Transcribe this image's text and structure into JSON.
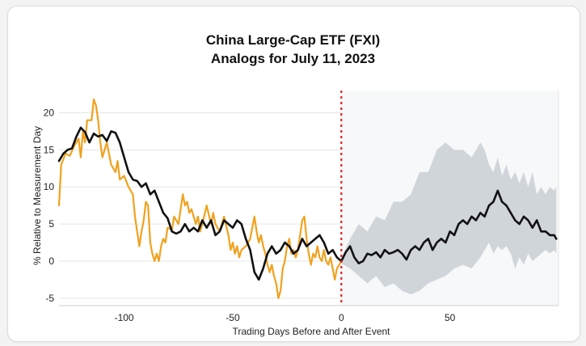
{
  "chart_data": {
    "type": "line",
    "title": "China Large-Cap ETF (FXI)",
    "subtitle": "Analogs for July 11, 2023",
    "xlabel": "Trading Days Before and After Event",
    "ylabel": "% Relative to Measurement Day",
    "xlim": [
      -130,
      100
    ],
    "ylim": [
      -6,
      23
    ],
    "x_ticks": [
      -100,
      -50,
      0,
      50
    ],
    "y_ticks": [
      -5,
      0,
      5,
      10,
      15,
      20
    ],
    "grid": "horizontal",
    "event_line": {
      "x": 0,
      "style": "dotted",
      "color": "#e32222"
    },
    "colors": {
      "measured": "#111111",
      "analog": "#f0a21e",
      "band": "#cdd3d8",
      "event": "#e32222"
    },
    "series": [
      {
        "role": "measured",
        "points": [
          [
            -130,
            13.5
          ],
          [
            -128,
            14.5
          ],
          [
            -126,
            15
          ],
          [
            -124,
            15.2
          ],
          [
            -122,
            16.8
          ],
          [
            -120,
            18
          ],
          [
            -118,
            17.4
          ],
          [
            -116,
            16
          ],
          [
            -114,
            17.2
          ],
          [
            -112,
            16.8
          ],
          [
            -110,
            17
          ],
          [
            -108,
            16.2
          ],
          [
            -106,
            17.5
          ],
          [
            -104,
            17.3
          ],
          [
            -102,
            16
          ],
          [
            -100,
            14
          ],
          [
            -98,
            12
          ],
          [
            -96,
            11
          ],
          [
            -94,
            10.8
          ],
          [
            -92,
            10
          ],
          [
            -90,
            10.5
          ],
          [
            -88,
            9
          ],
          [
            -86,
            9.5
          ],
          [
            -84,
            8
          ],
          [
            -82,
            6.5
          ],
          [
            -80,
            5.8
          ],
          [
            -78,
            4
          ],
          [
            -76,
            3.7
          ],
          [
            -74,
            4
          ],
          [
            -72,
            5
          ],
          [
            -70,
            4
          ],
          [
            -68,
            4.5
          ],
          [
            -66,
            4
          ],
          [
            -64,
            5.5
          ],
          [
            -62,
            4.5
          ],
          [
            -60,
            5.5
          ],
          [
            -58,
            3.5
          ],
          [
            -56,
            4
          ],
          [
            -54,
            5.5
          ],
          [
            -52,
            5
          ],
          [
            -50,
            4.5
          ],
          [
            -48,
            5.5
          ],
          [
            -46,
            5
          ],
          [
            -44,
            3
          ],
          [
            -42,
            1.5
          ],
          [
            -40,
            -1.5
          ],
          [
            -38,
            -2.5
          ],
          [
            -36,
            -1
          ],
          [
            -34,
            1
          ],
          [
            -32,
            2
          ],
          [
            -30,
            1
          ],
          [
            -28,
            1.5
          ],
          [
            -26,
            2.5
          ],
          [
            -24,
            2
          ],
          [
            -22,
            1
          ],
          [
            -20,
            1.5
          ],
          [
            -18,
            3
          ],
          [
            -16,
            2
          ],
          [
            -14,
            2.5
          ],
          [
            -12,
            3
          ],
          [
            -10,
            3.5
          ],
          [
            -8,
            2.5
          ],
          [
            -6,
            1
          ],
          [
            -4,
            1.5
          ],
          [
            -2,
            0.5
          ],
          [
            0,
            0
          ],
          [
            2,
            1.2
          ],
          [
            4,
            2
          ],
          [
            6,
            0.5
          ],
          [
            8,
            -0.3
          ],
          [
            10,
            0
          ],
          [
            12,
            1
          ],
          [
            14,
            0.8
          ],
          [
            16,
            1.2
          ],
          [
            18,
            0.5
          ],
          [
            20,
            1.5
          ],
          [
            22,
            1
          ],
          [
            24,
            1.2
          ],
          [
            26,
            1.5
          ],
          [
            28,
            1
          ],
          [
            30,
            0.2
          ],
          [
            32,
            1.5
          ],
          [
            34,
            2
          ],
          [
            36,
            1.5
          ],
          [
            38,
            2.5
          ],
          [
            40,
            3
          ],
          [
            42,
            1.5
          ],
          [
            44,
            2.5
          ],
          [
            46,
            3
          ],
          [
            48,
            2.5
          ],
          [
            50,
            4
          ],
          [
            52,
            3.5
          ],
          [
            54,
            5
          ],
          [
            56,
            5.5
          ],
          [
            58,
            5
          ],
          [
            60,
            6
          ],
          [
            62,
            5.5
          ],
          [
            64,
            6.5
          ],
          [
            66,
            6
          ],
          [
            68,
            7.5
          ],
          [
            70,
            8
          ],
          [
            72,
            9.5
          ],
          [
            74,
            8
          ],
          [
            76,
            7.5
          ],
          [
            78,
            6.5
          ],
          [
            80,
            5.5
          ],
          [
            82,
            5
          ],
          [
            84,
            6
          ],
          [
            86,
            5.5
          ],
          [
            88,
            4.5
          ],
          [
            90,
            5.5
          ],
          [
            92,
            4
          ],
          [
            94,
            4
          ],
          [
            96,
            3.5
          ],
          [
            98,
            3.5
          ],
          [
            99,
            3
          ]
        ]
      },
      {
        "role": "analog",
        "points": [
          [
            -130,
            7.5
          ],
          [
            -129,
            13
          ],
          [
            -127,
            14.5
          ],
          [
            -125,
            14.2
          ],
          [
            -123,
            15.5
          ],
          [
            -121,
            16.5
          ],
          [
            -120,
            14
          ],
          [
            -119,
            17.5
          ],
          [
            -118,
            16
          ],
          [
            -117,
            19
          ],
          [
            -115,
            19
          ],
          [
            -114,
            21.8
          ],
          [
            -113,
            21
          ],
          [
            -112,
            19
          ],
          [
            -111,
            16
          ],
          [
            -110,
            14
          ],
          [
            -108,
            16
          ],
          [
            -106,
            13
          ],
          [
            -104,
            12
          ],
          [
            -103,
            13.5
          ],
          [
            -102,
            11
          ],
          [
            -100,
            11.5
          ],
          [
            -98,
            10
          ],
          [
            -96,
            9
          ],
          [
            -95,
            6
          ],
          [
            -94,
            4
          ],
          [
            -93,
            2
          ],
          [
            -92,
            4
          ],
          [
            -91,
            5.5
          ],
          [
            -90,
            8
          ],
          [
            -89,
            7.5
          ],
          [
            -88,
            2.5
          ],
          [
            -87,
            1
          ],
          [
            -86,
            0
          ],
          [
            -85,
            1
          ],
          [
            -84,
            0
          ],
          [
            -83,
            2
          ],
          [
            -82,
            3
          ],
          [
            -81,
            2.5
          ],
          [
            -80,
            4.5
          ],
          [
            -78,
            4.2
          ],
          [
            -77,
            6
          ],
          [
            -75,
            5
          ],
          [
            -74,
            7
          ],
          [
            -73,
            9
          ],
          [
            -72,
            7.5
          ],
          [
            -71,
            8
          ],
          [
            -70,
            6.5
          ],
          [
            -69,
            7
          ],
          [
            -68,
            6
          ],
          [
            -67,
            5
          ],
          [
            -66,
            6
          ],
          [
            -65,
            4
          ],
          [
            -64,
            5
          ],
          [
            -62,
            7.5
          ],
          [
            -60,
            5
          ],
          [
            -59,
            6.5
          ],
          [
            -58,
            5
          ],
          [
            -56,
            4
          ],
          [
            -54,
            6
          ],
          [
            -52,
            3.5
          ],
          [
            -51,
            1.5
          ],
          [
            -50,
            2.5
          ],
          [
            -49,
            1
          ],
          [
            -48,
            2
          ],
          [
            -47,
            0.5
          ],
          [
            -46,
            1.5
          ],
          [
            -44,
            2
          ],
          [
            -42,
            3
          ],
          [
            -41,
            4.5
          ],
          [
            -40,
            6
          ],
          [
            -39,
            4
          ],
          [
            -38,
            2.5
          ],
          [
            -37,
            3.5
          ],
          [
            -36,
            2
          ],
          [
            -35,
            1
          ],
          [
            -34,
            -0.5
          ],
          [
            -33,
            -1.5
          ],
          [
            -32,
            -0.5
          ],
          [
            -31,
            -2
          ],
          [
            -30,
            -3
          ],
          [
            -29,
            -5
          ],
          [
            -28,
            -4
          ],
          [
            -27,
            -1
          ],
          [
            -26,
            0
          ],
          [
            -25,
            2
          ],
          [
            -24,
            3
          ],
          [
            -23,
            1
          ],
          [
            -22,
            1.5
          ],
          [
            -21,
            0.5
          ],
          [
            -20,
            1.5
          ],
          [
            -19,
            3.5
          ],
          [
            -18,
            5.5
          ],
          [
            -17,
            6
          ],
          [
            -16,
            3
          ],
          [
            -15,
            1
          ],
          [
            -14,
            -0.5
          ],
          [
            -13,
            1
          ],
          [
            -12,
            0.5
          ],
          [
            -11,
            2
          ],
          [
            -10,
            0.5
          ],
          [
            -9,
            0
          ],
          [
            -8,
            1.5
          ],
          [
            -7,
            0
          ],
          [
            -6,
            -0.5
          ],
          [
            -5,
            0.5
          ],
          [
            -4,
            -1
          ],
          [
            -3,
            -2.5
          ],
          [
            -2,
            -1
          ],
          [
            -1,
            -0.5
          ],
          [
            0,
            0
          ]
        ]
      }
    ],
    "band": {
      "upper": [
        [
          0,
          0.3
        ],
        [
          4,
          3
        ],
        [
          8,
          5
        ],
        [
          12,
          4
        ],
        [
          16,
          6
        ],
        [
          20,
          5.5
        ],
        [
          24,
          8
        ],
        [
          28,
          8
        ],
        [
          32,
          9
        ],
        [
          36,
          12
        ],
        [
          40,
          12
        ],
        [
          44,
          15
        ],
        [
          48,
          16
        ],
        [
          52,
          15
        ],
        [
          56,
          15
        ],
        [
          60,
          14
        ],
        [
          64,
          16
        ],
        [
          66,
          15
        ],
        [
          68,
          13
        ],
        [
          70,
          12
        ],
        [
          72,
          14
        ],
        [
          74,
          11.5
        ],
        [
          76,
          13
        ],
        [
          78,
          11
        ],
        [
          80,
          12
        ],
        [
          82,
          10.5
        ],
        [
          84,
          12
        ],
        [
          86,
          10
        ],
        [
          88,
          12
        ],
        [
          90,
          9
        ],
        [
          92,
          10
        ],
        [
          94,
          9
        ],
        [
          96,
          10
        ],
        [
          98,
          9.5
        ],
        [
          99,
          10
        ]
      ],
      "lower": [
        [
          0,
          -0.3
        ],
        [
          4,
          -1
        ],
        [
          8,
          -2
        ],
        [
          12,
          -3
        ],
        [
          16,
          -2
        ],
        [
          20,
          -3.5
        ],
        [
          24,
          -3
        ],
        [
          28,
          -4
        ],
        [
          32,
          -4.5
        ],
        [
          36,
          -4
        ],
        [
          40,
          -3
        ],
        [
          44,
          -2.5
        ],
        [
          48,
          -2
        ],
        [
          52,
          -1
        ],
        [
          56,
          -0.5
        ],
        [
          60,
          -1
        ],
        [
          64,
          0.5
        ],
        [
          66,
          1.5
        ],
        [
          68,
          2.5
        ],
        [
          70,
          1
        ],
        [
          72,
          2
        ],
        [
          74,
          1.5
        ],
        [
          76,
          2
        ],
        [
          78,
          1
        ],
        [
          80,
          -1
        ],
        [
          82,
          0.5
        ],
        [
          84,
          -0.5
        ],
        [
          86,
          1
        ],
        [
          88,
          0
        ],
        [
          90,
          0.5
        ],
        [
          92,
          1
        ],
        [
          94,
          1.5
        ],
        [
          96,
          1
        ],
        [
          98,
          1.5
        ],
        [
          99,
          1
        ]
      ]
    }
  }
}
